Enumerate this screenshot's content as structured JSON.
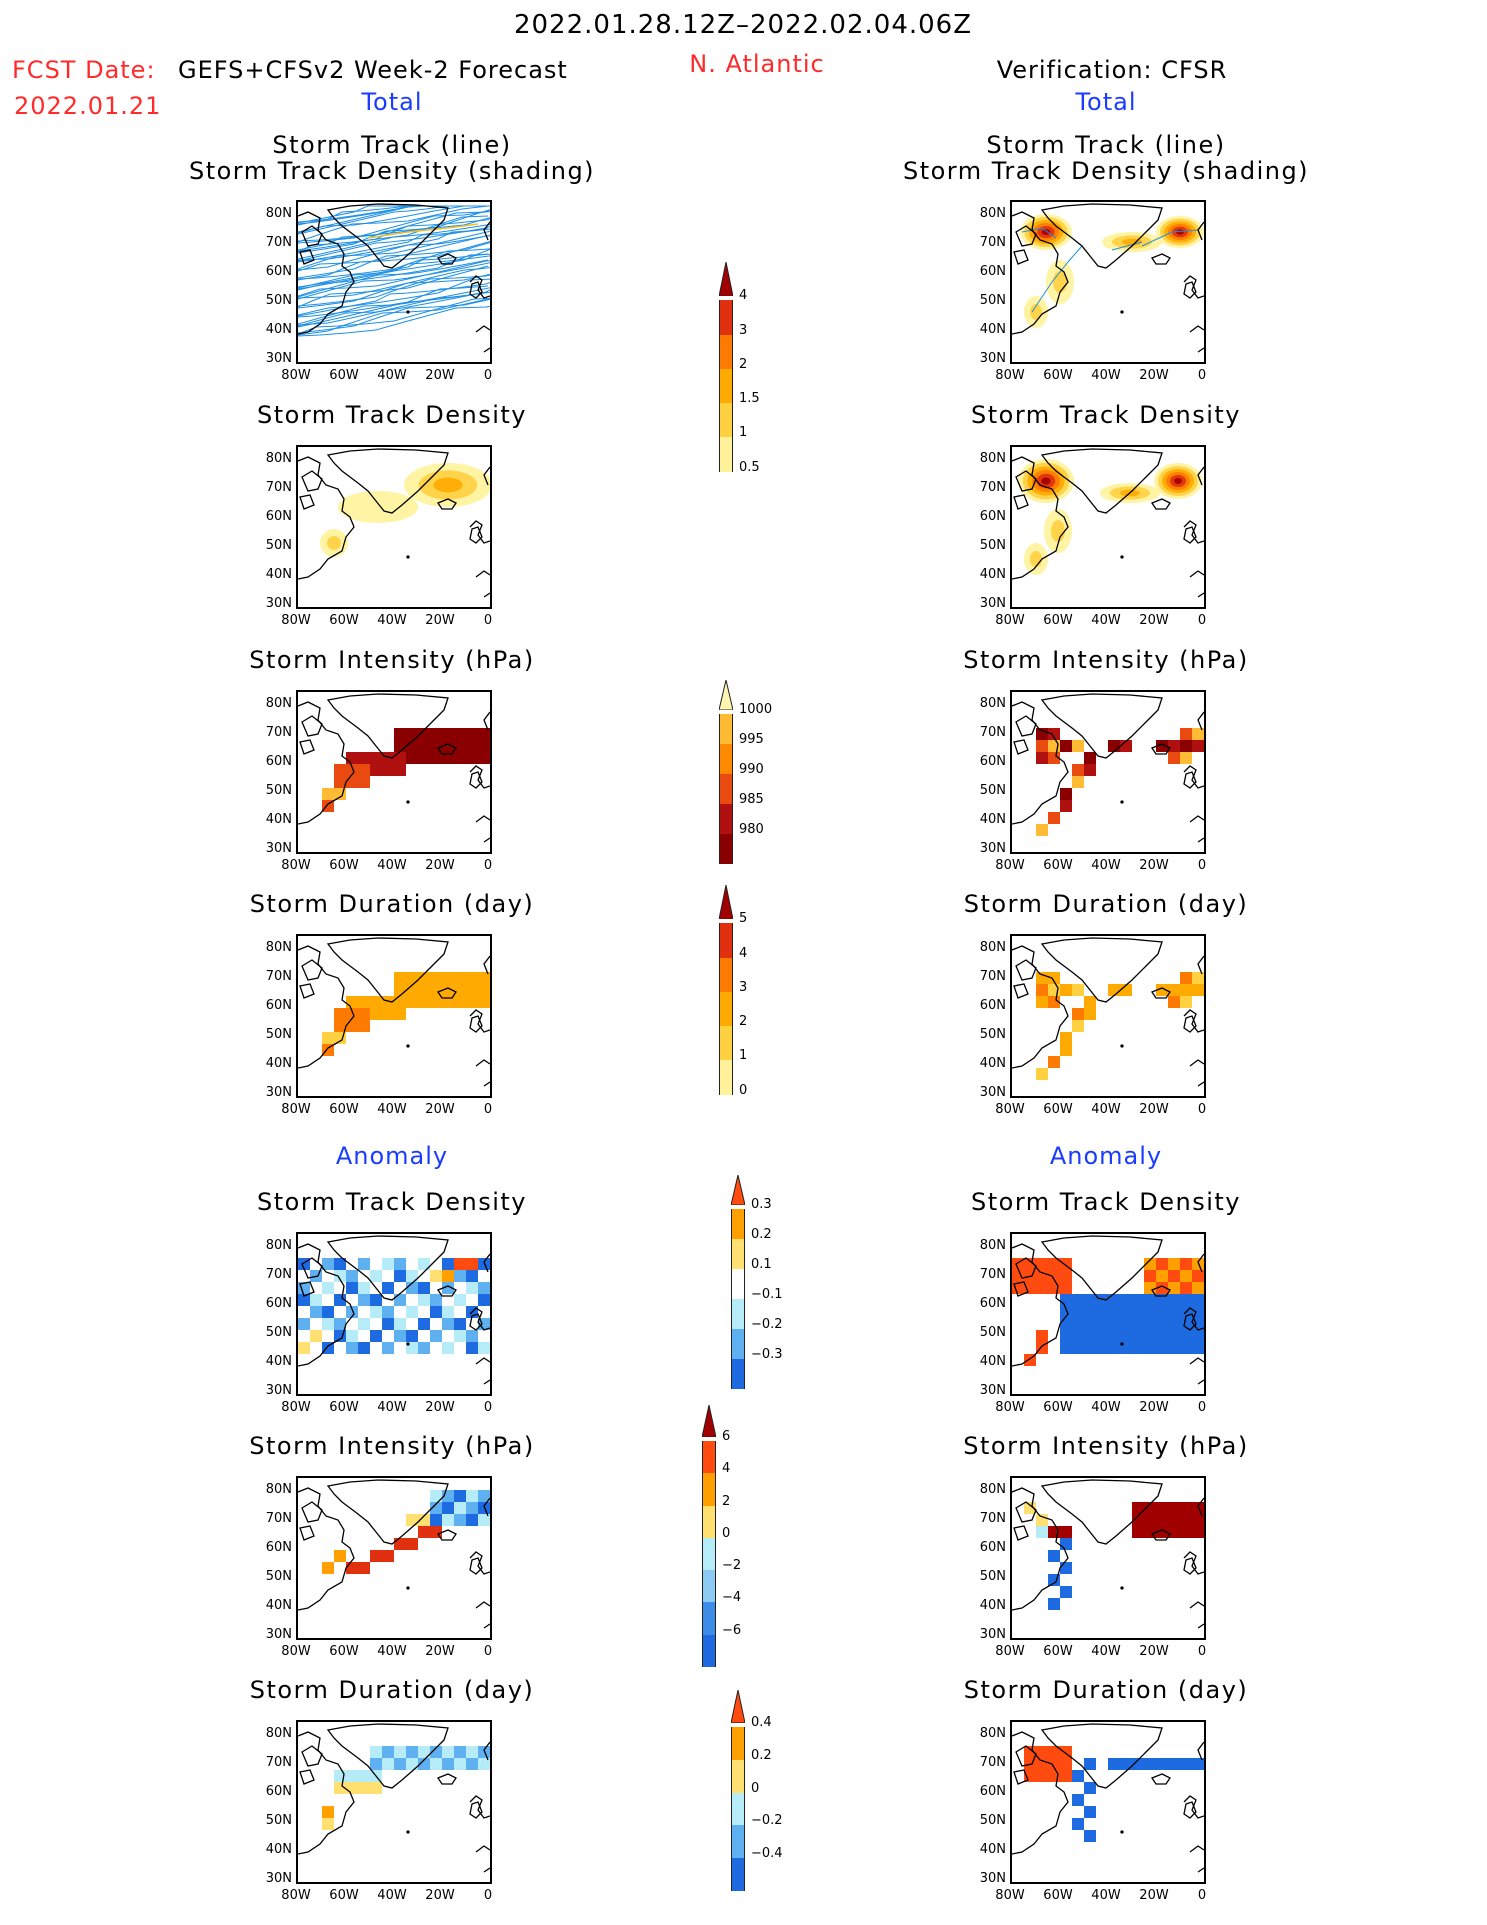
{
  "header": {
    "period": "2022.01.28.12Z–2022.02.04.06Z",
    "fcst_label": "FCST Date:",
    "model": "GEFS+CFSv2 Week-2 Forecast",
    "fcst_date": "2022.01.21",
    "region": "N. Atlantic",
    "verification": "Verification: CFSR"
  },
  "sections": {
    "total": "Total",
    "anomaly": "Anomaly"
  },
  "panel_titles": {
    "track_line": "Storm Track (line)",
    "track_shading": "Storm Track Density (shading)",
    "density": "Storm Track Density",
    "intensity": "Storm Intensity (hPa)",
    "duration": "Storm Duration (day)"
  },
  "axes": {
    "lat_labels": [
      "80N",
      "70N",
      "60N",
      "50N",
      "40N",
      "30N"
    ],
    "lon_labels": [
      "80W",
      "60W",
      "40W",
      "20W",
      "0"
    ]
  },
  "colorbars": {
    "density_total": {
      "labels": [
        "4",
        "3",
        "2",
        "1.5",
        "1",
        "0.5"
      ],
      "colors": [
        "#a00000",
        "#e03010",
        "#ff7a00",
        "#ffaa00",
        "#ffd040",
        "#fff29a"
      ]
    },
    "intensity_total": {
      "labels": [
        "1000",
        "995",
        "990",
        "985",
        "980"
      ],
      "colors": [
        "#fff5b0",
        "#ffbb33",
        "#ff8a00",
        "#e84a10",
        "#b01010",
        "#8a0000"
      ]
    },
    "duration_total": {
      "labels": [
        "5",
        "4",
        "3",
        "2",
        "1",
        "0"
      ],
      "colors": [
        "#a00000",
        "#e03010",
        "#ff7a00",
        "#ffaa00",
        "#ffd040",
        "#fff29a"
      ]
    },
    "density_anom": {
      "labels": [
        "0.3",
        "0.2",
        "0.1",
        "−0.1",
        "−0.2",
        "−0.3"
      ],
      "colors": [
        "#ff4a10",
        "#ffa000",
        "#ffe070",
        "#ffffff",
        "#b5ecf8",
        "#5fb0f0",
        "#1e6ae0"
      ]
    },
    "intensity_anom": {
      "labels": [
        "6",
        "4",
        "2",
        "0",
        "−2",
        "−4",
        "−6"
      ],
      "colors": [
        "#a00000",
        "#ff4a10",
        "#ffa000",
        "#ffe070",
        "#b5ecf8",
        "#8ccaf4",
        "#3c8ce8",
        "#1e6ae0"
      ]
    },
    "duration_anom": {
      "labels": [
        "0.4",
        "0.2",
        "0",
        "−0.2",
        "−0.4"
      ],
      "colors": [
        "#ff4a10",
        "#ffa000",
        "#ffe070",
        "#b5ecf8",
        "#5fb0f0",
        "#1e6ae0"
      ]
    }
  }
}
